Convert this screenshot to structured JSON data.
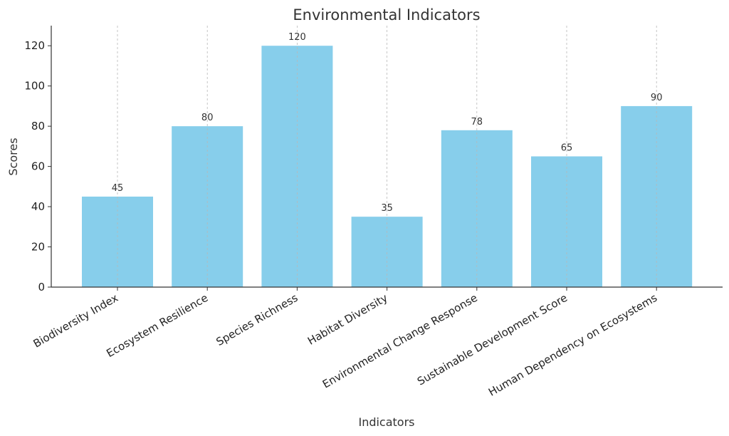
{
  "chart_data": {
    "type": "bar",
    "title": "Environmental Indicators",
    "xlabel": "Indicators",
    "ylabel": "Scores",
    "categories": [
      "Biodiversity Index",
      "Ecosystem Resilience",
      "Species Richness",
      "Habitat Diversity",
      "Environmental Change Response",
      "Sustainable Development Score",
      "Human Dependency on Ecosystems"
    ],
    "values": [
      45,
      80,
      120,
      35,
      78,
      65,
      90
    ],
    "ylim": [
      0,
      130
    ],
    "yticks": [
      0,
      20,
      40,
      60,
      80,
      100,
      120
    ],
    "grid": "x-dashed",
    "bar_color": "#87ceeb",
    "data_labels": true
  }
}
